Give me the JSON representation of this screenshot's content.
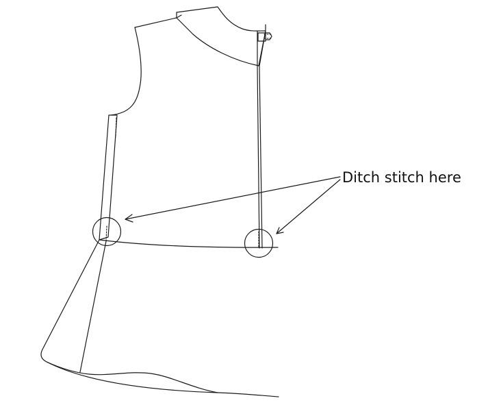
{
  "annotation": {
    "label": "Ditch stitch here"
  },
  "colors": {
    "line": "#1a1a1a",
    "text": "#111111",
    "background": "#ffffff"
  }
}
